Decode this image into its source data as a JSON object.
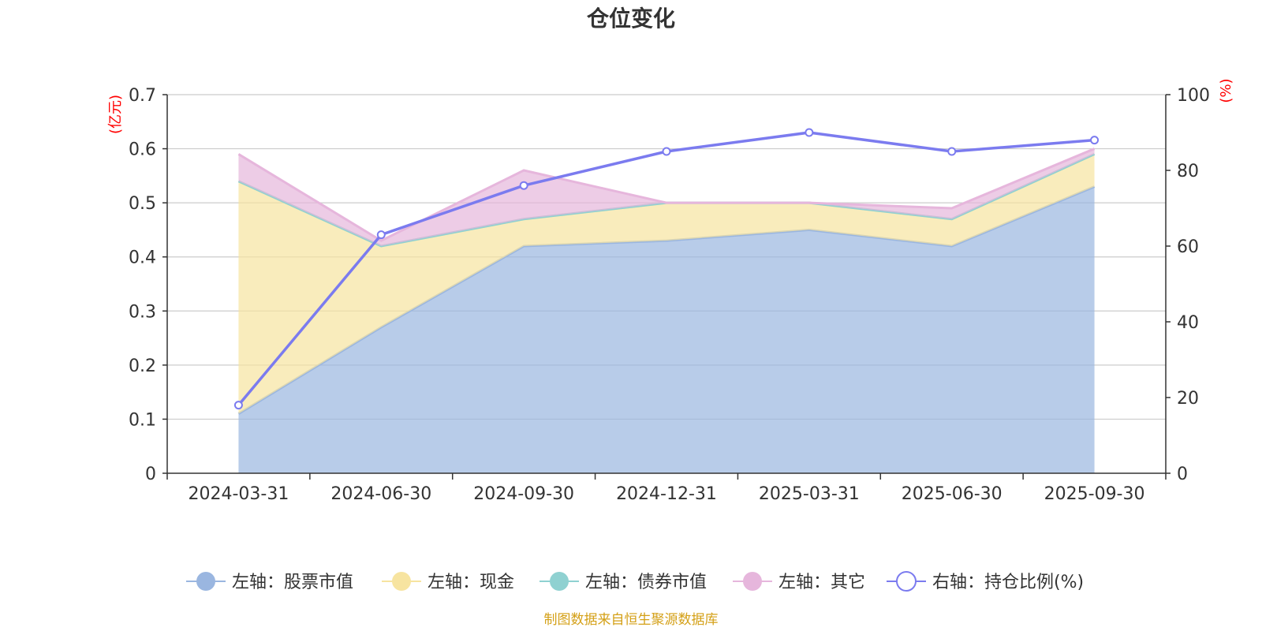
{
  "chart_data": {
    "type": "area",
    "title": "仓位变化",
    "source": "制图数据来自恒生聚源数据库",
    "categories": [
      "2024-03-31",
      "2024-06-30",
      "2024-09-30",
      "2024-12-31",
      "2025-03-31",
      "2025-06-30",
      "2025-09-30"
    ],
    "left_axis": {
      "unit": "(亿元)",
      "ylim": [
        0,
        0.7
      ],
      "ticks": [
        "0",
        "0.1",
        "0.2",
        "0.3",
        "0.4",
        "0.5",
        "0.6",
        "0.7"
      ]
    },
    "right_axis": {
      "unit": "(%)",
      "ylim": [
        0,
        100
      ],
      "ticks": [
        "0",
        "20",
        "40",
        "60",
        "80",
        "100"
      ]
    },
    "series": [
      {
        "name": "左轴：股票市值",
        "axis": "left",
        "kind": "stacked-area",
        "color": "#9ab6e0",
        "values": [
          0.11,
          0.27,
          0.42,
          0.43,
          0.45,
          0.42,
          0.53
        ]
      },
      {
        "name": "左轴：现金",
        "axis": "left",
        "kind": "stacked-area",
        "color": "#f7e4a0",
        "values": [
          0.43,
          0.15,
          0.05,
          0.07,
          0.05,
          0.05,
          0.06
        ]
      },
      {
        "name": "左轴：债券市值",
        "axis": "left",
        "kind": "stacked-area",
        "color": "#8fd1d1",
        "values": [
          0,
          0,
          0,
          0,
          0,
          0,
          0
        ]
      },
      {
        "name": "左轴：其它",
        "axis": "left",
        "kind": "stacked-area",
        "color": "#e6b6dc",
        "values": [
          0.05,
          0.01,
          0.09,
          0.0,
          0.0,
          0.02,
          0.01
        ]
      },
      {
        "name": "右轴：持仓比例(%)",
        "axis": "right",
        "kind": "line",
        "color": "#7b7bef",
        "values": [
          18,
          63,
          76,
          85,
          90,
          85,
          88
        ]
      }
    ]
  }
}
